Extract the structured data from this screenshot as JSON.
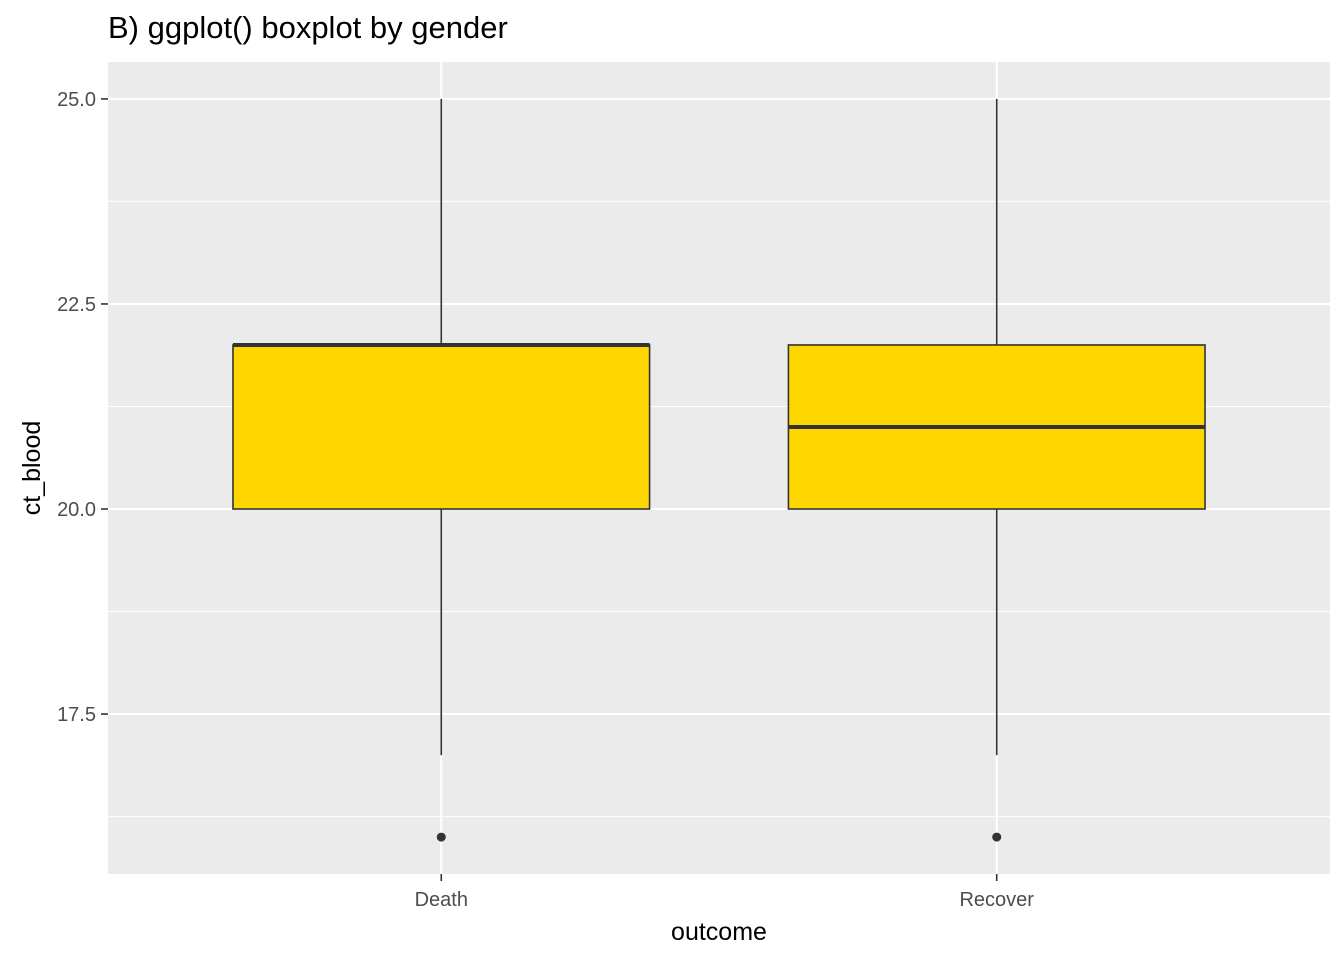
{
  "chart_data": {
    "type": "boxplot",
    "title": "B) ggplot() boxplot by gender",
    "xlabel": "outcome",
    "ylabel": "ct_blood",
    "categories": [
      "Death",
      "Recover"
    ],
    "boxes": [
      {
        "category": "Death",
        "whisker_low": 17,
        "q1": 20,
        "median": 22,
        "q3": 22,
        "whisker_high": 25,
        "outliers": [
          16
        ]
      },
      {
        "category": "Recover",
        "whisker_low": 17,
        "q1": 20,
        "median": 21,
        "q3": 22,
        "whisker_high": 25,
        "outliers": [
          16
        ]
      }
    ],
    "ylim": [
      15.55,
      25.45
    ],
    "yticks": [
      17.5,
      20.0,
      22.5,
      25.0
    ],
    "ytick_labels": [
      "17.5",
      "20.0",
      "22.5",
      "25.0"
    ],
    "yminor": [
      16.25,
      18.75,
      21.25,
      23.75
    ],
    "grid": true,
    "colors": {
      "box_fill": "#FFD700",
      "box_stroke": "#333333",
      "panel_bg": "#EBEBEB",
      "grid": "#FFFFFF"
    }
  }
}
